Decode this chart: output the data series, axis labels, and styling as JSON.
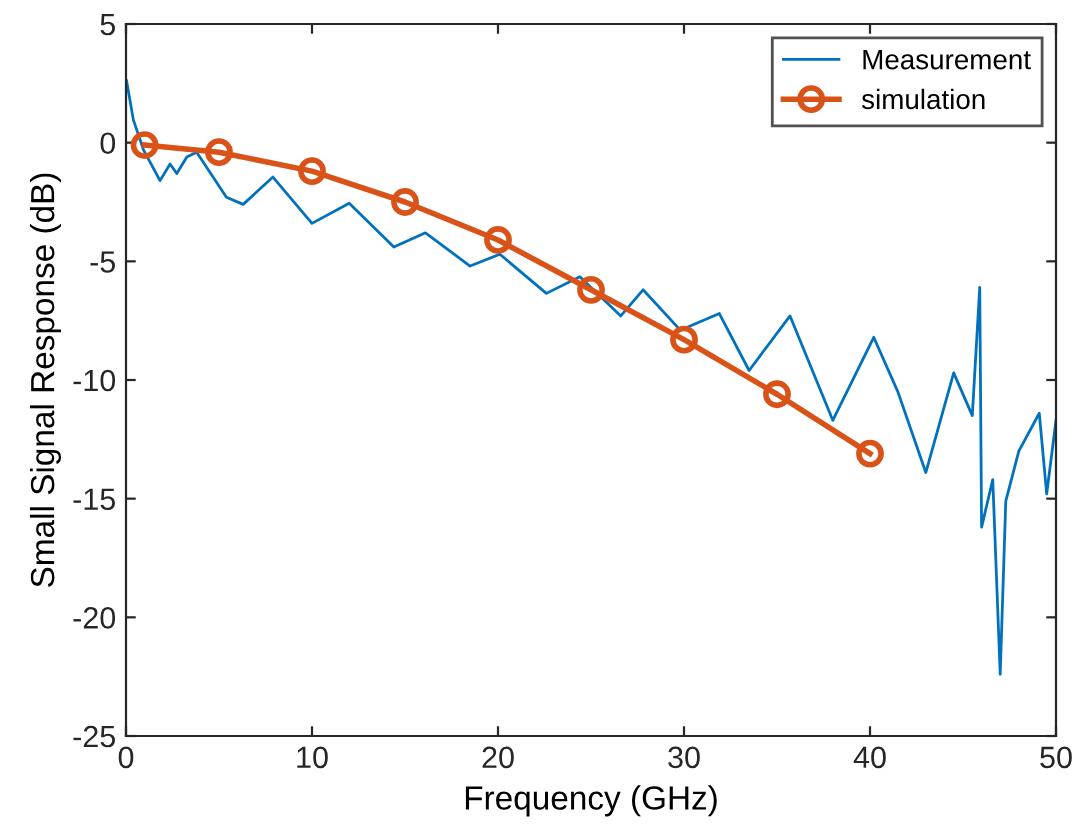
{
  "chart_data": {
    "type": "line",
    "xlabel": "Frequency (GHz)",
    "ylabel": "Small Signal Response (dB)",
    "xlim": [
      0,
      50
    ],
    "ylim": [
      -25,
      5
    ],
    "xticks": [
      0,
      10,
      20,
      30,
      40,
      50
    ],
    "yticks": [
      -25,
      -20,
      -15,
      -10,
      -5,
      0,
      5
    ],
    "grid": false,
    "legend": "top right",
    "series": [
      {
        "name": "Measurement",
        "color": "#0072bd",
        "marker": "none",
        "x": [
          0.03,
          0.4,
          0.94,
          1.83,
          2.37,
          2.73,
          3.27,
          3.8,
          5.4,
          6.3,
          7.9,
          10.0,
          12.0,
          14.4,
          16.1,
          18.5,
          20.1,
          22.6,
          24.4,
          26.6,
          27.8,
          29.8,
          31.9,
          33.5,
          35.7,
          38.0,
          40.2,
          41.5,
          43.0,
          44.5,
          45.5,
          45.9,
          46.0,
          46.6,
          47.0,
          47.3,
          48.0,
          49.1,
          49.5,
          50.0
        ],
        "values": [
          2.6,
          0.95,
          -0.3,
          -1.6,
          -0.9,
          -1.3,
          -0.6,
          -0.4,
          -2.3,
          -2.6,
          -1.45,
          -3.4,
          -2.55,
          -4.4,
          -3.8,
          -5.2,
          -4.7,
          -6.35,
          -5.65,
          -7.3,
          -6.2,
          -7.9,
          -7.2,
          -9.6,
          -7.3,
          -11.7,
          -8.2,
          -10.5,
          -13.9,
          -9.7,
          -11.5,
          -6.1,
          -16.2,
          -14.2,
          -22.4,
          -15.1,
          -13.0,
          -11.4,
          -14.8,
          -11.7
        ]
      },
      {
        "name": "simulation",
        "color": "#d95319",
        "marker": "circle",
        "x": [
          1,
          5,
          10,
          15,
          20,
          25,
          30,
          35,
          40
        ],
        "values": [
          -0.1,
          -0.4,
          -1.2,
          -2.5,
          -4.1,
          -6.2,
          -8.3,
          -10.6,
          -13.1
        ]
      }
    ]
  }
}
